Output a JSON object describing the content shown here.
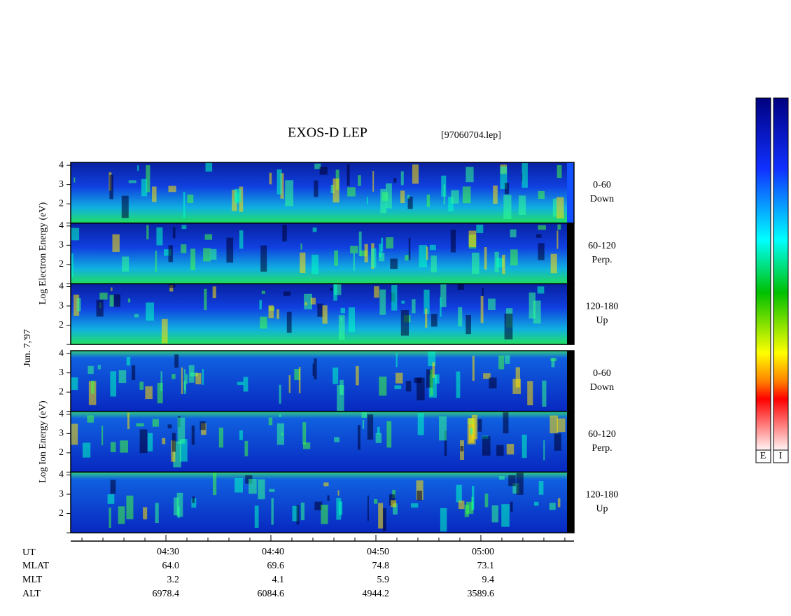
{
  "chart_data": {
    "type": "spectrogram",
    "title": "EXOS-D LEP",
    "subtitle": "[97060704.lep]",
    "date_label": "Jun. 7,'97",
    "ylim": [
      1,
      4.15
    ],
    "yticks": [
      2,
      3,
      4
    ],
    "groups": [
      {
        "ylabel": "Log  Electron  Energy (eV)",
        "panels": [
          {
            "label": [
              "0-60",
              "Down"
            ]
          },
          {
            "label": [
              "60-120",
              "Perp."
            ]
          },
          {
            "label": [
              "120-180",
              "Up"
            ]
          }
        ]
      },
      {
        "ylabel": "Log  Ion  Energy (eV)",
        "panels": [
          {
            "label": [
              "0-60",
              "Down"
            ]
          },
          {
            "label": [
              "60-120",
              "Perp."
            ]
          },
          {
            "label": [
              "120-180",
              "Up"
            ]
          }
        ]
      }
    ],
    "x_title": "UT",
    "xlim": [
      20.93,
      68.87
    ],
    "xticks": [
      {
        "value": 30,
        "label": "04:30"
      },
      {
        "value": 40,
        "label": "04:40"
      },
      {
        "value": 50,
        "label": "04:50"
      },
      {
        "value": 60,
        "label": "05:00"
      }
    ],
    "xminorticks": [
      22,
      24,
      26,
      28,
      32,
      34,
      36,
      38,
      42,
      44,
      46,
      48,
      52,
      54,
      56,
      58,
      62,
      64,
      66,
      68
    ],
    "ephemeris": [
      {
        "name": "MLAT",
        "values": [
          "64.0",
          "69.6",
          "74.8",
          "73.1"
        ]
      },
      {
        "name": "MLT",
        "values": [
          "3.2",
          "4.1",
          "5.9",
          "9.4"
        ]
      },
      {
        "name": "ALT",
        "values": [
          "6978.4",
          "6084.6",
          "4944.2",
          "3589.6"
        ]
      }
    ],
    "colorbar_labels": [
      "E",
      "I"
    ]
  }
}
